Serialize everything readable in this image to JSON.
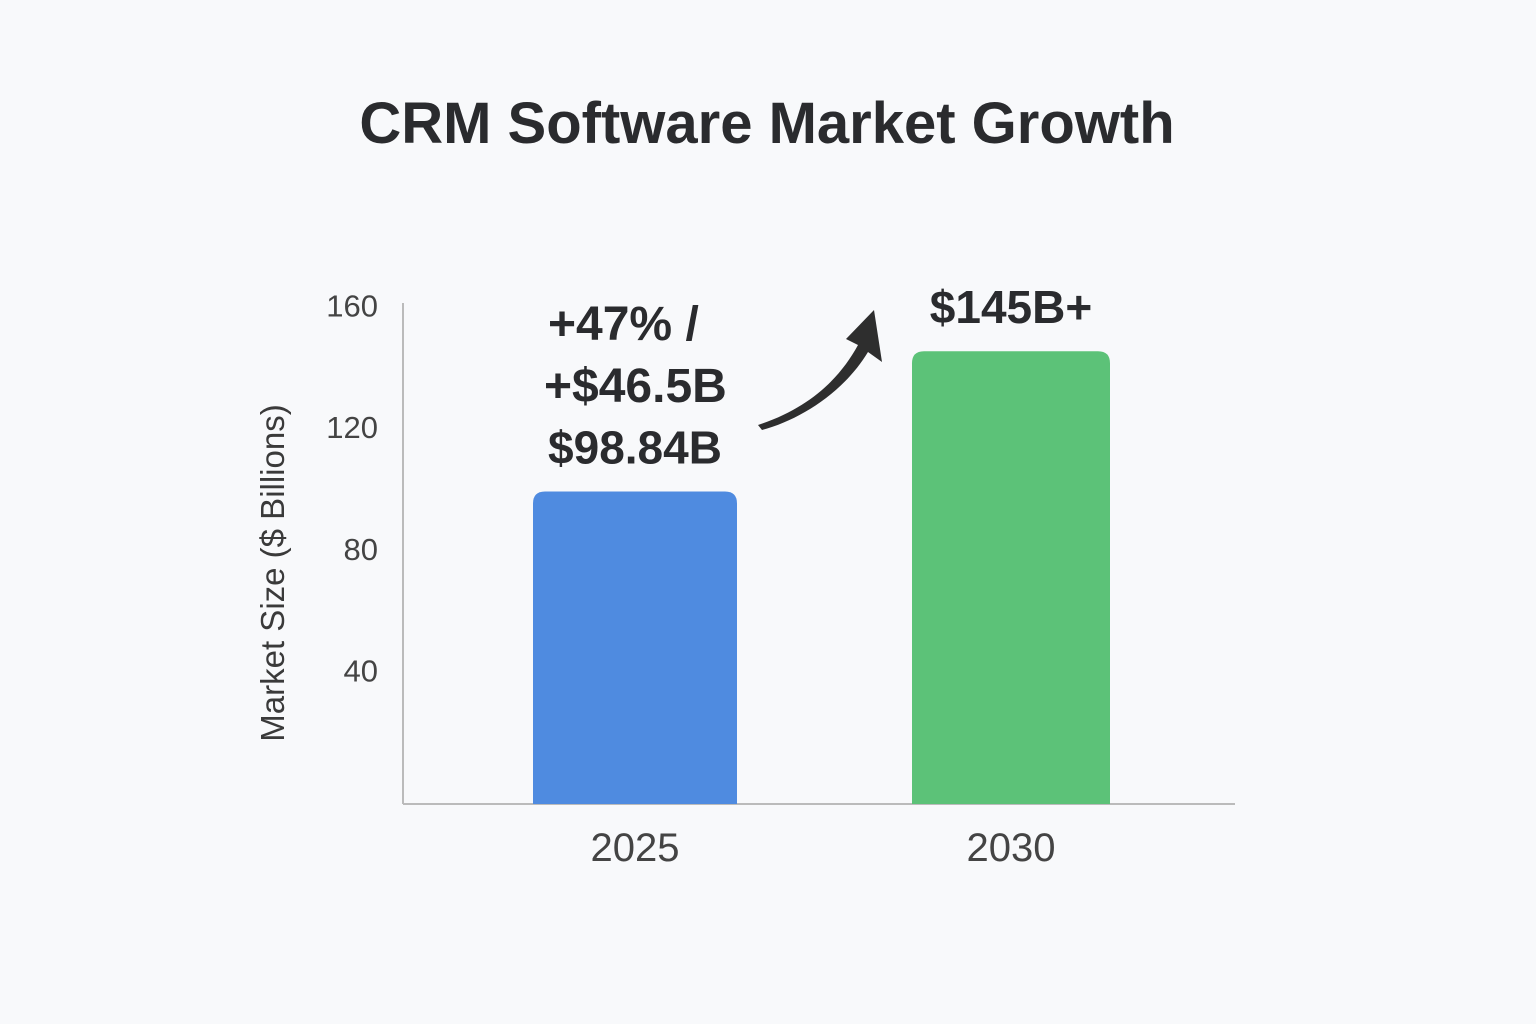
{
  "chart_data": {
    "type": "bar",
    "title": "CRM Software Market Growth",
    "xlabel": "",
    "ylabel": "Market Size ($ Billions)",
    "categories": [
      "2025",
      "2030"
    ],
    "values": [
      98.84,
      145
    ],
    "data_labels": [
      "$98.84B",
      "$145B+"
    ],
    "colors": [
      "#4f8be0",
      "#5cc278"
    ],
    "yticks": [
      40,
      80,
      120,
      160
    ],
    "ylim": [
      0,
      160
    ],
    "grid": false,
    "annotation": {
      "lines": [
        "+47% /",
        "+$46.5B"
      ],
      "arrow": "curved-up-arrow"
    }
  }
}
